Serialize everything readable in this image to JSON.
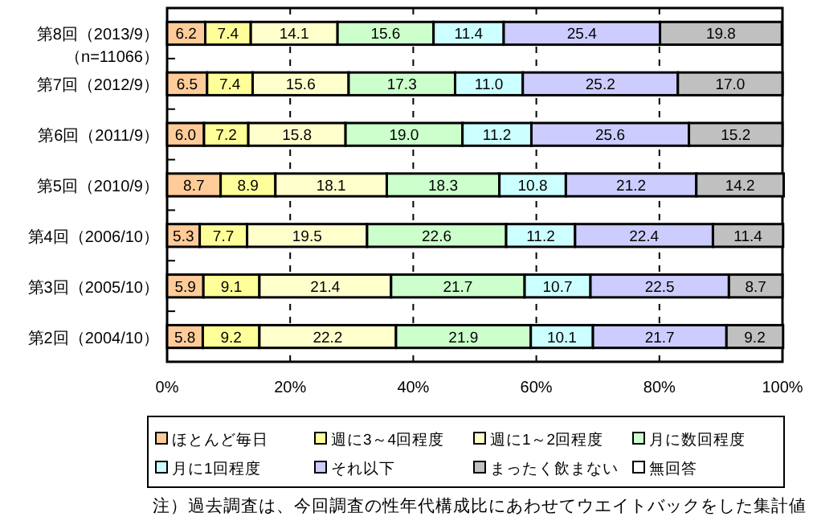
{
  "chart_data": {
    "type": "bar",
    "orientation": "horizontal",
    "stacked": true,
    "categories": [
      "第8回（2013/9）（n=11066）",
      "第7回（2012/9）",
      "第6回（2011/9）",
      "第5回（2010/9）",
      "第4回（2006/10）",
      "第3回（2005/10）",
      "第2回（2004/10）"
    ],
    "series": [
      {
        "name": "ほとんど毎日",
        "color": "#ffcc99",
        "values": [
          6.2,
          6.5,
          6.0,
          8.7,
          5.3,
          5.9,
          5.8
        ],
        "value_labels": [
          "6.2",
          "6.5",
          "6.0",
          "8.7",
          "5.3",
          "5.9",
          "5.8"
        ]
      },
      {
        "name": "週に3～4回程度",
        "color": "#ffff99",
        "values": [
          7.4,
          7.4,
          7.2,
          8.9,
          7.7,
          9.1,
          9.2
        ],
        "value_labels": [
          "7.4",
          "7.4",
          "7.2",
          "8.9",
          "7.7",
          "9.1",
          "9.2"
        ]
      },
      {
        "name": "週に1～2回程度",
        "color": "#ffffcc",
        "values": [
          14.1,
          15.6,
          15.8,
          18.1,
          19.5,
          21.4,
          22.2
        ],
        "value_labels": [
          "14.1",
          "15.6",
          "15.8",
          "18.1",
          "19.5",
          "21.4",
          "22.2"
        ]
      },
      {
        "name": "月に数回程度",
        "color": "#ccffcc",
        "values": [
          15.6,
          17.3,
          19.0,
          18.3,
          22.6,
          21.7,
          21.9
        ],
        "value_labels": [
          "15.6",
          "17.3",
          "19.0",
          "18.3",
          "22.6",
          "21.7",
          "21.9"
        ]
      },
      {
        "name": "月に1回程度",
        "color": "#ccffff",
        "values": [
          11.4,
          11.0,
          11.2,
          10.8,
          11.2,
          10.7,
          10.1
        ],
        "value_labels": [
          "11.4",
          "11.0",
          "11.2",
          "10.8",
          "11.2",
          "10.7",
          "10.1"
        ]
      },
      {
        "name": "それ以下",
        "color": "#ccccff",
        "values": [
          25.4,
          25.2,
          25.6,
          21.2,
          22.4,
          22.5,
          21.7
        ],
        "value_labels": [
          "25.4",
          "25.2",
          "25.6",
          "21.2",
          "22.4",
          "22.5",
          "21.7"
        ]
      },
      {
        "name": "まったく飲まない",
        "color": "#c0c0c0",
        "values": [
          19.8,
          17.0,
          15.2,
          14.2,
          11.4,
          8.7,
          9.2
        ],
        "value_labels": [
          "19.8",
          "17.0",
          "15.2",
          "14.2",
          "11.4",
          "8.7",
          "9.2"
        ]
      },
      {
        "name": "無回答",
        "color": "#ffffff",
        "values": [
          null,
          null,
          null,
          null,
          null,
          null,
          null
        ]
      }
    ],
    "xlim": [
      0,
      100
    ],
    "xticks": [
      {
        "value": 0,
        "label": "0%"
      },
      {
        "value": 20,
        "label": "20%"
      },
      {
        "value": 40,
        "label": "40%"
      },
      {
        "value": 60,
        "label": "60%"
      },
      {
        "value": 80,
        "label": "80%"
      },
      {
        "value": 100,
        "label": "100%"
      }
    ],
    "grid": "x",
    "legend": "bottom",
    "annotations": [
      "注）過去調査は、今回調査の性年代構成比にあわせてウエイトバックをした集計値"
    ]
  }
}
